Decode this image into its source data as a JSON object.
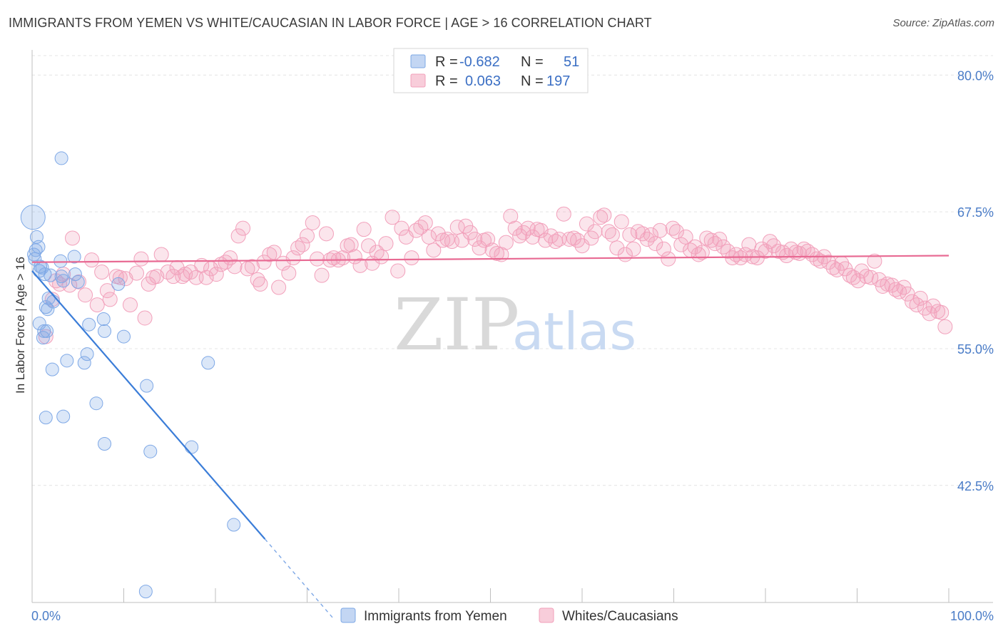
{
  "title": "IMMIGRANTS FROM YEMEN VS WHITE/CAUCASIAN IN LABOR FORCE | AGE > 16 CORRELATION CHART",
  "source": "Source: ZipAtlas.com",
  "watermark": {
    "zip": "ZIP",
    "atlas": "atlas"
  },
  "legend_top": {
    "r_label": "R =",
    "n_label": "N =",
    "series": [
      {
        "r": "-0.682",
        "n": "51",
        "color": "#7ea8e6"
      },
      {
        "r": "0.063",
        "n": "197",
        "color": "#f2a0bb"
      }
    ]
  },
  "chart_data": {
    "type": "scatter",
    "title": "IMMIGRANTS FROM YEMEN VS WHITE/CAUCASIAN IN LABOR FORCE | AGE > 16 CORRELATION CHART",
    "xlabel": "",
    "ylabel": "In Labor Force | Age > 16",
    "xlim": [
      0,
      100
    ],
    "ylim": [
      31.8,
      82.3
    ],
    "x_tick_labels": [
      "0.0%",
      "100.0%"
    ],
    "y_ticks": [
      42.5,
      55.0,
      67.5,
      80.0
    ],
    "y_tick_labels": [
      "42.5%",
      "55.0%",
      "67.5%",
      "80.0%"
    ],
    "grid": true,
    "series": [
      {
        "name": "Immigrants from Yemen",
        "color": "#7ea8e6",
        "trend": {
          "x": [
            0,
            25.4
          ],
          "y": [
            62.1,
            37.6
          ],
          "dash_to": [
            32.8,
            30.4
          ]
        },
        "points": [
          [
            0.1,
            67.0
          ],
          [
            0.5,
            65.2
          ],
          [
            0.4,
            64.0
          ],
          [
            0.7,
            64.3
          ],
          [
            0.2,
            63.6
          ],
          [
            0.3,
            63.2
          ],
          [
            0.9,
            62.5
          ],
          [
            1.1,
            62.4
          ],
          [
            0.8,
            62.1
          ],
          [
            1.4,
            61.8
          ],
          [
            3.1,
            63.0
          ],
          [
            4.6,
            63.4
          ],
          [
            2.0,
            61.7
          ],
          [
            3.2,
            61.6
          ],
          [
            4.7,
            61.8
          ],
          [
            3.4,
            61.2
          ],
          [
            1.8,
            59.6
          ],
          [
            2.3,
            59.3
          ],
          [
            1.5,
            58.8
          ],
          [
            1.7,
            58.6
          ],
          [
            5.0,
            61.1
          ],
          [
            9.4,
            60.9
          ],
          [
            0.8,
            57.3
          ],
          [
            1.3,
            56.6
          ],
          [
            1.6,
            56.6
          ],
          [
            1.2,
            56.0
          ],
          [
            6.2,
            57.2
          ],
          [
            7.8,
            57.7
          ],
          [
            7.9,
            56.6
          ],
          [
            10.0,
            56.1
          ],
          [
            3.8,
            53.9
          ],
          [
            5.7,
            53.7
          ],
          [
            6.0,
            54.5
          ],
          [
            2.2,
            53.1
          ],
          [
            19.2,
            53.7
          ],
          [
            12.5,
            51.6
          ],
          [
            7.0,
            50.0
          ],
          [
            1.5,
            48.7
          ],
          [
            3.4,
            48.8
          ],
          [
            7.9,
            46.3
          ],
          [
            12.9,
            45.6
          ],
          [
            17.4,
            46.0
          ],
          [
            22.0,
            38.9
          ],
          [
            12.4,
            32.8
          ],
          [
            3.2,
            72.4
          ]
        ]
      },
      {
        "name": "Whites/Caucasians",
        "color": "#f2a0bb",
        "trend": {
          "x": [
            0,
            100
          ],
          "y": [
            62.9,
            63.5
          ]
        },
        "points": [
          [
            1.5,
            56.1
          ],
          [
            2.2,
            59.5
          ],
          [
            2.6,
            61.2
          ],
          [
            3.0,
            60.9
          ],
          [
            3.4,
            61.8
          ],
          [
            4.1,
            60.8
          ],
          [
            4.4,
            65.1
          ],
          [
            5.1,
            61.1
          ],
          [
            5.8,
            59.9
          ],
          [
            6.5,
            63.1
          ],
          [
            7.1,
            59.0
          ],
          [
            7.6,
            62.0
          ],
          [
            8.2,
            60.3
          ],
          [
            8.5,
            59.5
          ],
          [
            9.2,
            61.6
          ],
          [
            9.6,
            61.5
          ],
          [
            10.2,
            61.4
          ],
          [
            10.7,
            59.0
          ],
          [
            11.4,
            61.9
          ],
          [
            11.9,
            63.2
          ],
          [
            12.3,
            57.8
          ],
          [
            12.7,
            60.9
          ],
          [
            13.2,
            61.5
          ],
          [
            13.6,
            61.6
          ],
          [
            14.1,
            63.6
          ],
          [
            14.8,
            62.0
          ],
          [
            15.4,
            61.6
          ],
          [
            15.8,
            62.4
          ],
          [
            16.4,
            61.6
          ],
          [
            16.7,
            61.8
          ],
          [
            17.3,
            62.0
          ],
          [
            17.9,
            61.5
          ],
          [
            18.5,
            62.6
          ],
          [
            19.0,
            61.5
          ],
          [
            19.5,
            62.3
          ],
          [
            20.1,
            61.8
          ],
          [
            20.6,
            62.7
          ],
          [
            21.1,
            62.9
          ],
          [
            21.6,
            63.3
          ],
          [
            22.1,
            62.5
          ],
          [
            22.5,
            65.3
          ],
          [
            23.0,
            66.0
          ],
          [
            23.5,
            62.3
          ],
          [
            24.0,
            62.5
          ],
          [
            24.6,
            61.3
          ],
          [
            24.9,
            60.9
          ],
          [
            25.3,
            62.9
          ],
          [
            25.9,
            63.6
          ],
          [
            26.4,
            63.8
          ],
          [
            26.9,
            60.6
          ],
          [
            27.4,
            62.8
          ],
          [
            28.0,
            61.9
          ],
          [
            28.5,
            63.3
          ],
          [
            29.0,
            64.2
          ],
          [
            29.5,
            64.5
          ],
          [
            30.0,
            65.3
          ],
          [
            30.6,
            66.5
          ],
          [
            31.1,
            63.2
          ],
          [
            31.6,
            61.7
          ],
          [
            32.1,
            65.5
          ],
          [
            32.5,
            63.1
          ],
          [
            32.9,
            63.3
          ],
          [
            33.4,
            63.1
          ],
          [
            33.9,
            63.3
          ],
          [
            34.4,
            64.4
          ],
          [
            34.8,
            64.5
          ],
          [
            35.2,
            63.4
          ],
          [
            35.8,
            62.6
          ],
          [
            36.2,
            65.9
          ],
          [
            36.7,
            64.4
          ],
          [
            37.1,
            62.8
          ],
          [
            37.6,
            63.8
          ],
          [
            38.1,
            63.4
          ],
          [
            38.6,
            64.6
          ],
          [
            39.3,
            67.0
          ],
          [
            39.9,
            62.1
          ],
          [
            40.3,
            66.0
          ],
          [
            40.8,
            65.2
          ],
          [
            41.4,
            63.3
          ],
          [
            41.9,
            65.8
          ],
          [
            42.4,
            66.1
          ],
          [
            42.9,
            66.5
          ],
          [
            43.3,
            65.2
          ],
          [
            43.8,
            64.0
          ],
          [
            44.3,
            65.5
          ],
          [
            44.8,
            64.9
          ],
          [
            45.3,
            65.0
          ],
          [
            45.8,
            64.8
          ],
          [
            46.4,
            66.1
          ],
          [
            46.9,
            64.9
          ],
          [
            47.3,
            66.2
          ],
          [
            47.8,
            65.6
          ],
          [
            48.3,
            65.0
          ],
          [
            48.8,
            64.2
          ],
          [
            49.3,
            64.9
          ],
          [
            49.7,
            65.0
          ],
          [
            50.2,
            64.0
          ],
          [
            50.7,
            63.7
          ],
          [
            51.2,
            63.6
          ],
          [
            51.7,
            64.7
          ],
          [
            52.2,
            67.1
          ],
          [
            52.7,
            66.0
          ],
          [
            53.2,
            65.3
          ],
          [
            53.6,
            65.6
          ],
          [
            54.1,
            66.0
          ],
          [
            54.6,
            65.2
          ],
          [
            55.1,
            65.9
          ],
          [
            55.5,
            65.8
          ],
          [
            56.0,
            64.9
          ],
          [
            56.6,
            65.3
          ],
          [
            57.1,
            64.8
          ],
          [
            57.5,
            65.0
          ],
          [
            58.0,
            67.3
          ],
          [
            58.6,
            65.0
          ],
          [
            59.1,
            65.1
          ],
          [
            59.5,
            64.9
          ],
          [
            60.0,
            64.4
          ],
          [
            60.5,
            66.4
          ],
          [
            61.0,
            65.1
          ],
          [
            61.4,
            65.7
          ],
          [
            62.0,
            67.0
          ],
          [
            62.4,
            67.2
          ],
          [
            62.9,
            65.7
          ],
          [
            63.3,
            65.4
          ],
          [
            63.8,
            64.2
          ],
          [
            64.3,
            66.6
          ],
          [
            64.7,
            63.6
          ],
          [
            65.2,
            65.4
          ],
          [
            65.6,
            64.1
          ],
          [
            66.1,
            65.7
          ],
          [
            66.6,
            65.5
          ],
          [
            67.1,
            65.0
          ],
          [
            67.5,
            65.4
          ],
          [
            68.0,
            64.6
          ],
          [
            68.5,
            65.8
          ],
          [
            68.9,
            64.1
          ],
          [
            69.4,
            63.2
          ],
          [
            69.9,
            66.0
          ],
          [
            70.3,
            65.7
          ],
          [
            70.8,
            64.5
          ],
          [
            71.3,
            65.2
          ],
          [
            71.8,
            64.0
          ],
          [
            72.3,
            64.3
          ],
          [
            72.7,
            63.6
          ],
          [
            73.1,
            63.8
          ],
          [
            73.6,
            65.1
          ],
          [
            74.1,
            64.9
          ],
          [
            74.5,
            64.6
          ],
          [
            75.0,
            65.0
          ],
          [
            75.4,
            64.3
          ],
          [
            75.9,
            63.9
          ],
          [
            76.4,
            63.3
          ],
          [
            76.8,
            63.6
          ],
          [
            77.3,
            63.3
          ],
          [
            77.8,
            63.6
          ],
          [
            78.2,
            64.5
          ],
          [
            78.6,
            63.4
          ],
          [
            79.1,
            63.3
          ],
          [
            79.6,
            64.1
          ],
          [
            80.0,
            63.9
          ],
          [
            80.5,
            64.8
          ],
          [
            80.9,
            64.4
          ],
          [
            81.4,
            63.9
          ],
          [
            81.9,
            63.8
          ],
          [
            82.3,
            63.5
          ],
          [
            82.8,
            64.1
          ],
          [
            83.3,
            63.8
          ],
          [
            83.7,
            63.7
          ],
          [
            84.2,
            64.1
          ],
          [
            84.6,
            63.9
          ],
          [
            85.1,
            63.6
          ],
          [
            85.6,
            63.2
          ],
          [
            86.0,
            63.0
          ],
          [
            86.4,
            63.4
          ],
          [
            86.9,
            62.9
          ],
          [
            87.4,
            62.4
          ],
          [
            87.8,
            62.2
          ],
          [
            88.3,
            62.8
          ],
          [
            88.7,
            62.3
          ],
          [
            89.2,
            61.7
          ],
          [
            89.6,
            61.5
          ],
          [
            90.1,
            61.2
          ],
          [
            90.5,
            62.1
          ],
          [
            91.0,
            61.6
          ],
          [
            91.5,
            61.5
          ],
          [
            91.9,
            63.0
          ],
          [
            92.4,
            61.3
          ],
          [
            92.8,
            60.7
          ],
          [
            93.3,
            60.9
          ],
          [
            93.8,
            60.8
          ],
          [
            94.2,
            60.4
          ],
          [
            94.6,
            60.2
          ],
          [
            95.1,
            60.6
          ],
          [
            95.5,
            60.0
          ],
          [
            96.0,
            59.3
          ],
          [
            96.5,
            59.0
          ],
          [
            96.9,
            59.6
          ],
          [
            97.4,
            58.7
          ],
          [
            97.9,
            58.2
          ],
          [
            98.3,
            58.9
          ],
          [
            98.8,
            58.4
          ],
          [
            99.2,
            58.3
          ],
          [
            99.6,
            57.0
          ]
        ]
      }
    ]
  },
  "bottom_legend": [
    {
      "label": "Immigrants from Yemen",
      "color": "#7ea8e6"
    },
    {
      "label": "Whites/Caucasians",
      "color": "#f2a0bb"
    }
  ]
}
